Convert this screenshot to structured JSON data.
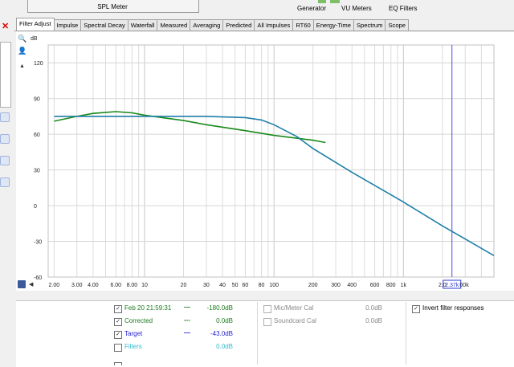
{
  "topbar": {
    "spl_label": "SPL Meter",
    "tools": [
      "Generator",
      "VU Meters",
      "EQ Filters"
    ]
  },
  "tabs": [
    "Filter Adjust",
    "Impulse",
    "Spectral Decay",
    "Waterfall",
    "Measured",
    "Averaging",
    "Predicted",
    "All Impulses",
    "RT60",
    "Energy-Time",
    "Spectrum",
    "Scope"
  ],
  "active_tab": "Filter Adjust",
  "chart_data": {
    "type": "line",
    "ylabel": "dB",
    "y_ticks": [
      "120",
      "90",
      "60",
      "30",
      "0",
      "-30",
      "-60"
    ],
    "ylim": [
      -60,
      135
    ],
    "x_scale": "log",
    "x_tick_labels": [
      "2.00",
      "3.00",
      "4.00",
      "6.00",
      "8.00",
      "10",
      "20",
      "30",
      "40",
      "50",
      "60",
      "80",
      "100",
      "200",
      "300",
      "400",
      "600",
      "800",
      "1k",
      "2.0",
      "2.37k",
      "00k"
    ],
    "cursor_label": "2.37k",
    "series": [
      {
        "name": "Feb 20 21:59:31",
        "color": "#1a8a1a",
        "x": [
          2,
          3,
          4,
          6,
          8,
          10,
          20,
          30,
          60,
          100,
          200,
          250
        ],
        "y": [
          71,
          75,
          77.5,
          79,
          78,
          76,
          71.5,
          68,
          63,
          59,
          55,
          53
        ]
      },
      {
        "name": "Target",
        "color": "#1f7fa8",
        "x": [
          2,
          10,
          30,
          60,
          80,
          100,
          150,
          200,
          400,
          1000,
          2000,
          3000,
          5000
        ],
        "y": [
          75,
          75,
          75,
          74,
          72,
          68,
          58,
          48,
          28,
          3,
          -17,
          -28,
          -42
        ]
      }
    ]
  },
  "legend": {
    "left": [
      {
        "label": "Feb 20 21:59:31",
        "checked": true,
        "line": "—",
        "value": "-180.0dB",
        "color": "#1a7a1a"
      },
      {
        "label": "Corrected",
        "checked": true,
        "line": "---",
        "value": "0.0dB",
        "color": "#1a7a1a"
      },
      {
        "label": "Target",
        "checked": true,
        "line": "—",
        "value": "-43.0dB",
        "color": "#1f1fd0"
      },
      {
        "label": "Filters",
        "checked": false,
        "line": "",
        "value": "0.0dB",
        "color": "#33bbcc"
      }
    ],
    "middle": [
      {
        "label": "Mic/Meter Cal",
        "value": "0.0dB"
      },
      {
        "label": "Soundcard Cal",
        "value": "0.0dB"
      }
    ],
    "invert_label": "Invert filter responses",
    "check_mark": "✓"
  }
}
